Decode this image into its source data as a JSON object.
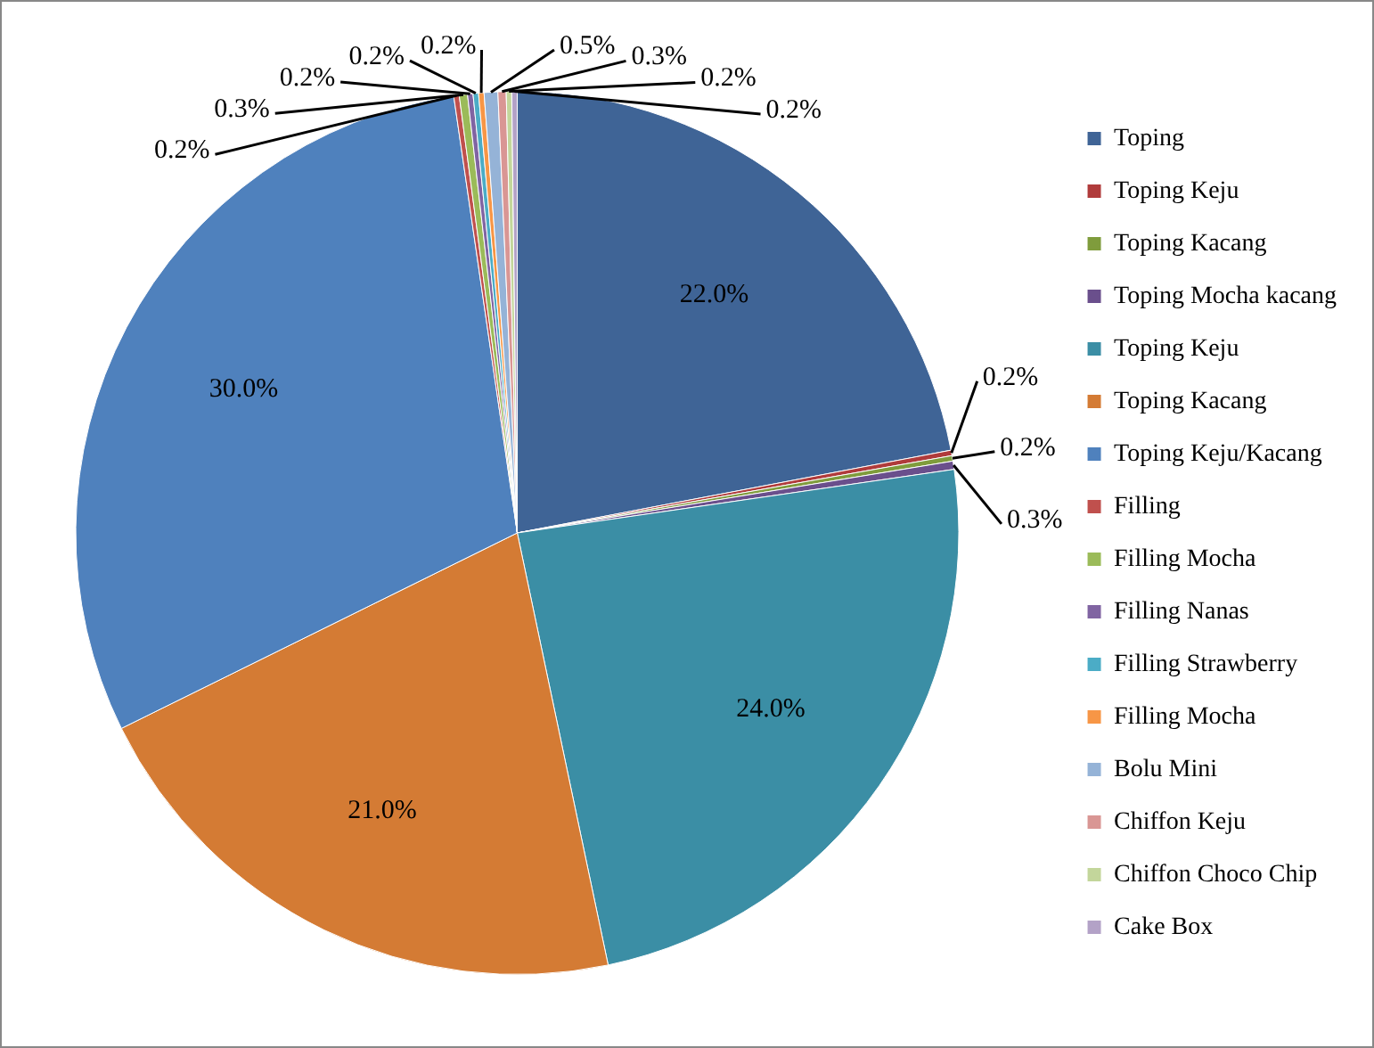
{
  "chart_data": {
    "type": "pie",
    "categories": [
      "Toping",
      "Toping Keju",
      "Toping Kacang",
      "Toping Mocha kacang",
      "Toping Keju",
      "Toping Kacang",
      "Toping Keju/Kacang",
      "Filling",
      "Filling Mocha",
      "Filling Nanas",
      "Filling Strawberry",
      "Filling Mocha",
      "Bolu Mini",
      "Chiffon Keju",
      "Chiffon Choco Chip",
      "Cake Box"
    ],
    "values": [
      22.0,
      0.2,
      0.2,
      0.3,
      24.0,
      21.0,
      30.0,
      0.2,
      0.3,
      0.2,
      0.2,
      0.2,
      0.5,
      0.3,
      0.2,
      0.2
    ],
    "value_labels": [
      "22.0%",
      "0.2%",
      "0.2%",
      "0.3%",
      "24.0%",
      "21.0%",
      "30.0%",
      "0.2%",
      "0.3%",
      "0.2%",
      "0.2%",
      "0.2%",
      "0.5%",
      "0.3%",
      "0.2%",
      "0.2%"
    ],
    "colors": [
      "#3f6496",
      "#b03b3b",
      "#7f9c3c",
      "#6a4f8c",
      "#3b8ea5",
      "#d47b34",
      "#4f81bd",
      "#c0504d",
      "#9bbb59",
      "#8064a2",
      "#4bacc6",
      "#f79646",
      "#95b3d7",
      "#d99694",
      "#c3d69b",
      "#b3a2c7"
    ],
    "legend": "right"
  }
}
